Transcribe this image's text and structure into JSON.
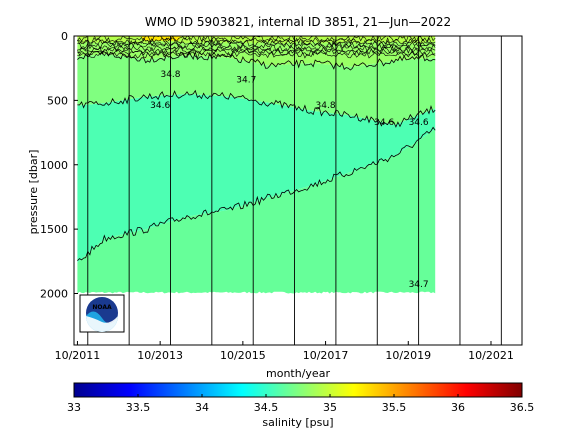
{
  "chart_data": {
    "type": "heatmap",
    "title": "WMO ID 5903821, internal ID 3851, 21—Jun—2022",
    "xlabel": "month/year",
    "ylabel": "pressure [dbar]",
    "x_range": [
      "2011-09",
      "2022-07"
    ],
    "x_ticks": [
      "10/2011",
      "10/2013",
      "10/2015",
      "10/2017",
      "10/2019",
      "10/2021"
    ],
    "y_range": [
      0,
      2400
    ],
    "y_reversed": true,
    "y_ticks": [
      "0",
      "500",
      "1000",
      "1500",
      "2000"
    ],
    "data_extent": {
      "start": "2011-10",
      "end": "2020-06",
      "max_pressure": 2000
    },
    "year_lines": [
      "2012-01",
      "2013-01",
      "2014-01",
      "2015-01",
      "2016-01",
      "2017-01",
      "2018-01",
      "2019-01",
      "2020-01",
      "2021-01",
      "2022-01"
    ],
    "salinity_layers": [
      {
        "name": "34.4-34.6",
        "color": "#4dffb3"
      },
      {
        "name": "34.6-34.7",
        "color": "#66ff99"
      },
      {
        "name": "34.7-34.8",
        "color": "#80ff80"
      },
      {
        "name": "34.8-34.9",
        "color": "#99ff66"
      },
      {
        "name": "34.9-35.0",
        "color": "#b3ff4d"
      },
      {
        "name": "35.0-35.2",
        "color": "#ffe600"
      }
    ],
    "contour_levels": [
      34.6,
      34.7,
      34.8
    ],
    "contours": [
      {
        "level": 34.6,
        "x": [
          "2011-10",
          "2012-06",
          "2013-06",
          "2014-06",
          "2015-06",
          "2016-06",
          "2017-06",
          "2018-06",
          "2019-06",
          "2019-12",
          "2020-06"
        ],
        "y": [
          1760,
          1570,
          1500,
          1400,
          1350,
          1250,
          1160,
          1050,
          930,
          830,
          720
        ]
      },
      {
        "level": 34.7,
        "x": [
          "2011-10",
          "2012-06",
          "2013-06",
          "2014-06",
          "2015-06",
          "2016-06",
          "2017-06",
          "2018-06",
          "2019-06",
          "2020-06"
        ],
        "y": [
          540,
          520,
          470,
          450,
          470,
          520,
          580,
          620,
          690,
          560
        ]
      },
      {
        "level": 34.8,
        "x": [
          "2011-10",
          "2012-06",
          "2013-06",
          "2014-06",
          "2015-06",
          "2016-06",
          "2017-06",
          "2018-06",
          "2019-06",
          "2020-06"
        ],
        "y": [
          160,
          140,
          180,
          150,
          170,
          230,
          210,
          240,
          190,
          170
        ]
      }
    ],
    "contour_labels": [
      {
        "text": "34.8",
        "x": "2014-01",
        "y": 320
      },
      {
        "text": "34.7",
        "x": "2015-11",
        "y": 360
      },
      {
        "text": "34.6",
        "x": "2013-10",
        "y": 560
      },
      {
        "text": "34.8",
        "x": "2017-10",
        "y": 560
      },
      {
        "text": "34.6",
        "x": "2019-03",
        "y": 690
      },
      {
        "text": "34.6",
        "x": "2020-01",
        "y": 690
      },
      {
        "text": "34.7",
        "x": "2020-01",
        "y": 1950
      }
    ],
    "colorbar": {
      "label": "salinity [psu]",
      "range": [
        33,
        36.5
      ],
      "ticks": [
        "33",
        "33.5",
        "34",
        "34.5",
        "35",
        "35.5",
        "36",
        "36.5"
      ],
      "colors": [
        "#00008f",
        "#0000ff",
        "#0080ff",
        "#00ffff",
        "#80ff80",
        "#ffff00",
        "#ff8000",
        "#ff0000",
        "#800000"
      ]
    }
  },
  "logo": {
    "text": "NOAA"
  }
}
